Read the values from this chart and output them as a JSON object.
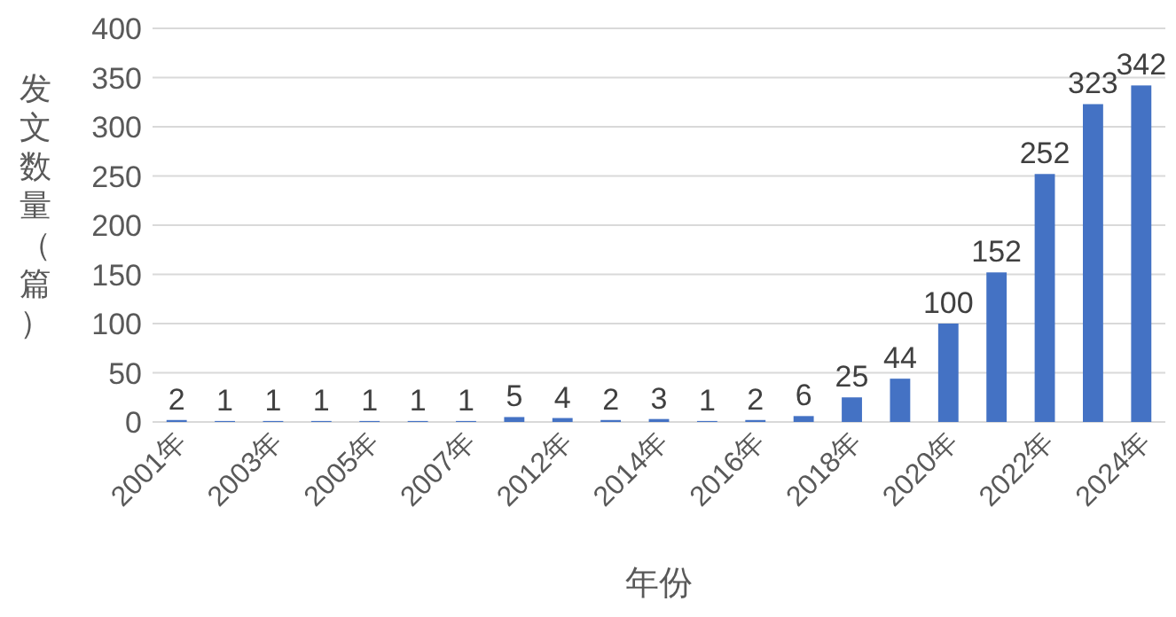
{
  "chart_data": {
    "type": "bar",
    "xlabel": "年份",
    "ylabel": "发文数量（篇）",
    "categories": [
      "2001年",
      null,
      "2003年",
      null,
      "2005年",
      null,
      "2007年",
      null,
      "2012年",
      null,
      "2014年",
      null,
      "2016年",
      null,
      "2018年",
      null,
      "2020年",
      null,
      "2022年",
      null,
      "2024年"
    ],
    "series": [
      {
        "color": "#4472c4",
        "values": [
          2,
          1,
          1,
          1,
          1,
          1,
          1,
          5,
          4,
          2,
          3,
          1,
          2,
          6,
          25,
          44,
          100,
          152,
          252,
          323,
          342
        ]
      }
    ],
    "ylim": [
      0,
      400
    ],
    "yticks": [
      0,
      50,
      100,
      150,
      200,
      250,
      300,
      350,
      400
    ],
    "grid": "y",
    "data_labels": true
  }
}
